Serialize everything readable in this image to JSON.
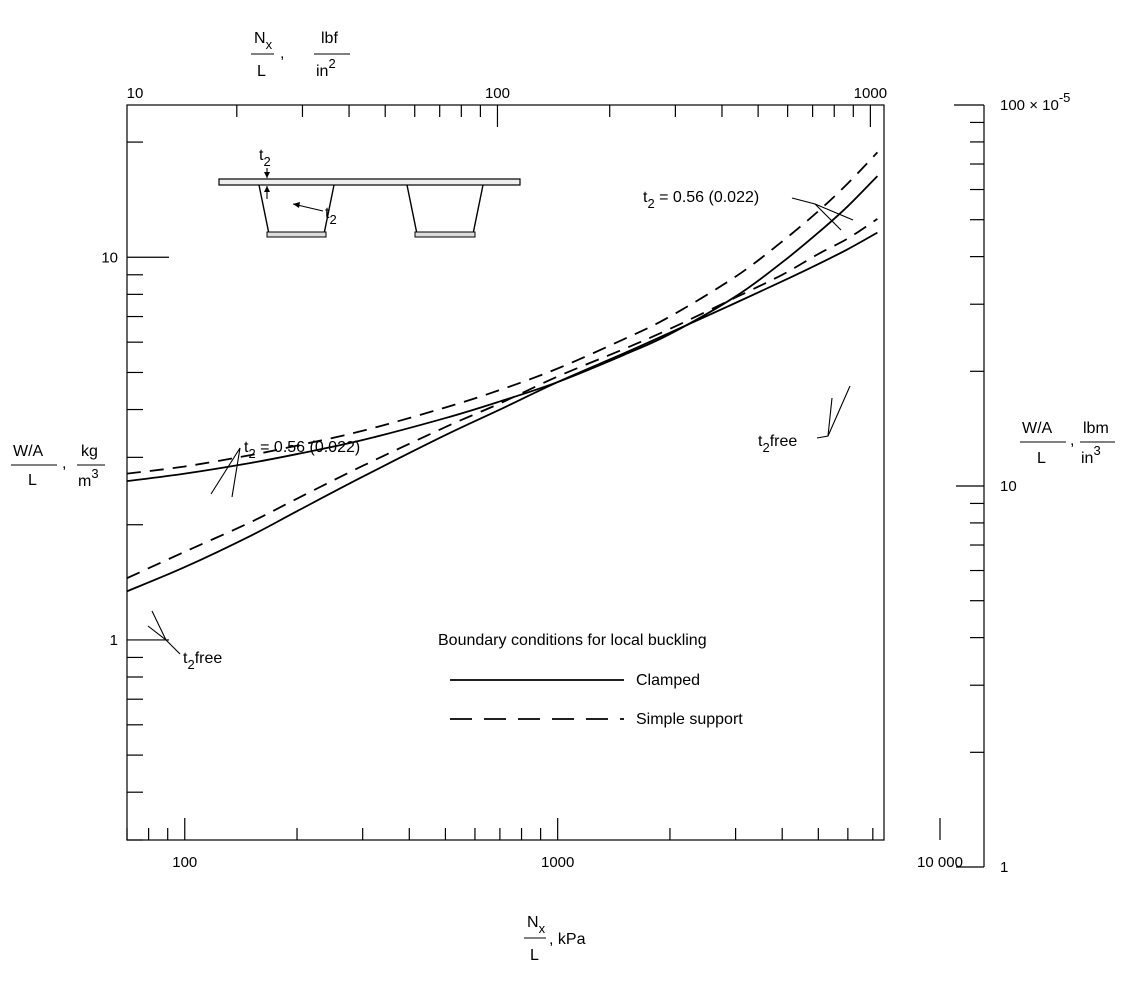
{
  "chart_data": {
    "type": "line",
    "x_scale": "log",
    "y_scale": "log",
    "xlabel": {
      "numerator": "N",
      "subscript": "x",
      "denominator": "L",
      "unit": ", kPa"
    },
    "ylabel": {
      "numerator": "W/A",
      "denominator": "L",
      "unit_num": "kg",
      "unit_den": "m",
      "unit_exp": "3"
    },
    "top_label": {
      "numerator": "N",
      "subscript": "x",
      "denominator": "L",
      "unit_num": "lbf",
      "unit_den": "in",
      "unit_exp": "2"
    },
    "right_label": {
      "numerator": "W/A",
      "denominator": "L",
      "unit_num": "lbm",
      "unit_den": "in",
      "unit_exp": "3"
    },
    "xlim": [
      70,
      7500
    ],
    "ylim": [
      0.3,
      25
    ],
    "x_ticks": [
      {
        "value": 100,
        "label": "100"
      },
      {
        "value": 1000,
        "label": "1000"
      },
      {
        "value": 10000,
        "label": "10 000"
      }
    ],
    "y_ticks": [
      {
        "value": 1,
        "label": "1"
      },
      {
        "value": 10,
        "label": "10"
      }
    ],
    "top_ticks": [
      {
        "value": 10,
        "label": "10"
      },
      {
        "value": 100,
        "label": "100"
      },
      {
        "value": 1000,
        "label": "1000"
      }
    ],
    "right_ticks": [
      {
        "value": 1,
        "label": "1"
      },
      {
        "value": 10,
        "label": "10"
      },
      {
        "value": 100,
        "label": "100",
        "suffix": "× 10",
        "exponent": "-5"
      }
    ],
    "series": [
      {
        "style": "solid",
        "x": [
          70,
          100,
          150,
          200,
          300,
          500,
          700,
          1000,
          1500,
          2000,
          3000,
          4000,
          5000,
          6000,
          7200
        ],
        "y": [
          2.6,
          2.72,
          2.9,
          3.06,
          3.33,
          3.8,
          4.2,
          4.72,
          5.55,
          6.3,
          7.9,
          9.7,
          11.6,
          13.6,
          16.3
        ]
      },
      {
        "style": "dashed",
        "x": [
          70,
          100,
          150,
          200,
          300,
          500,
          700,
          1000,
          1500,
          2000,
          3000,
          4000,
          5000,
          6000,
          7200
        ],
        "y": [
          2.72,
          2.84,
          3.04,
          3.22,
          3.52,
          4.05,
          4.5,
          5.12,
          6.1,
          7.0,
          8.9,
          11.0,
          13.2,
          15.6,
          18.8
        ]
      },
      {
        "style": "solid",
        "x": [
          70,
          100,
          150,
          200,
          300,
          500,
          700,
          1000,
          1500,
          2000,
          3000,
          4000,
          5000,
          6000,
          7200
        ],
        "y": [
          1.34,
          1.55,
          1.87,
          2.17,
          2.67,
          3.43,
          4.0,
          4.72,
          5.6,
          6.35,
          7.6,
          8.65,
          9.6,
          10.5,
          11.6
        ]
      },
      {
        "style": "dashed",
        "x": [
          70,
          100,
          150,
          200,
          300,
          500,
          700,
          1000,
          1500,
          2000,
          3000,
          4000,
          5000,
          6000,
          7200
        ],
        "y": [
          1.45,
          1.7,
          2.03,
          2.34,
          2.85,
          3.6,
          4.15,
          4.88,
          5.75,
          6.5,
          7.85,
          9.0,
          10.2,
          11.2,
          12.6
        ]
      }
    ],
    "annotations": {
      "upper_right": {
        "base": "t",
        "sub": "2",
        "text": " = 0.56 (0.022)"
      },
      "upper_left": {
        "base": "t",
        "sub": "2",
        "text": " = 0.56 (0.022)"
      },
      "lower_right": {
        "base": "t",
        "sub": "2",
        "text": "free"
      },
      "lower_left": {
        "base": "t",
        "sub": "2",
        "text": "free"
      },
      "inset_top": {
        "base": "t",
        "sub": "2"
      },
      "inset_side": {
        "base": "t",
        "sub": "2"
      }
    },
    "legend": {
      "title": "Boundary conditions for local buckling",
      "entries": [
        {
          "style": "solid",
          "label": "Clamped"
        },
        {
          "style": "dashed",
          "label": "Simple support"
        }
      ]
    }
  }
}
